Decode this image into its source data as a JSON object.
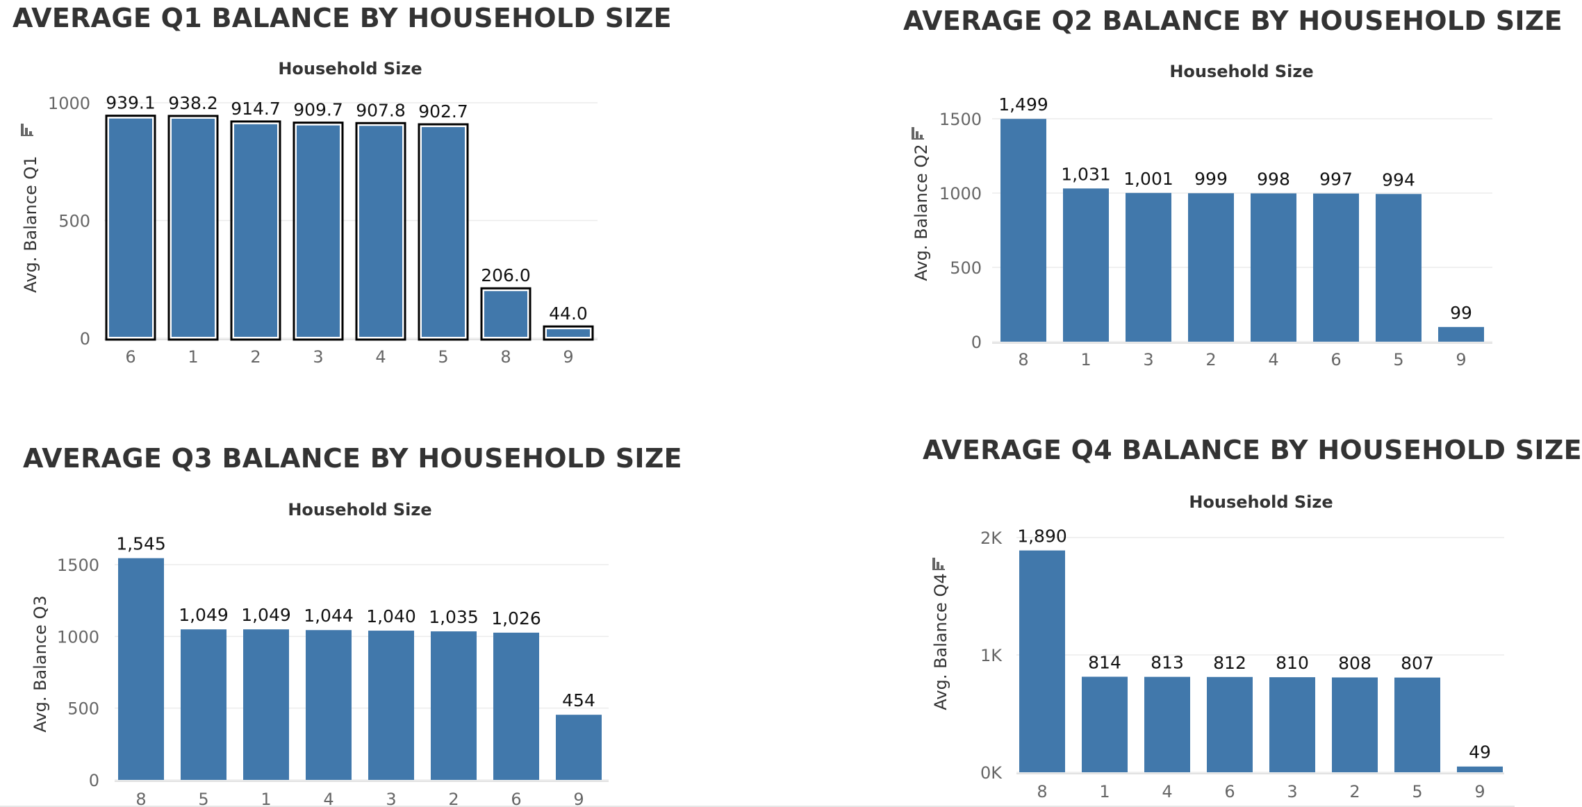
{
  "colors": {
    "bar": "#4178ab",
    "grid": "#ececec",
    "axis": "#d9d9d9",
    "highlight_outline": "#000000"
  },
  "icons": {
    "sort": "sort-icon"
  },
  "chart_data": [
    {
      "type": "bar",
      "title": "AVERAGE Q1 BALANCE BY HOUSEHOLD SIZE",
      "xlabel": "Household Size",
      "ylabel": "Avg. Balance Q1",
      "categories": [
        "6",
        "1",
        "2",
        "3",
        "4",
        "5",
        "8",
        "9"
      ],
      "values": [
        939.1,
        938.2,
        914.7,
        909.7,
        907.8,
        902.7,
        206.0,
        44.0
      ],
      "data_labels": [
        "939.1",
        "938.2",
        "914.7",
        "909.7",
        "907.8",
        "902.7",
        "206.0",
        "44.0"
      ],
      "ylim": [
        0,
        1000
      ],
      "yticks": [
        0,
        500,
        1000
      ],
      "ytick_labels": [
        "0",
        "500",
        "1000"
      ],
      "highlighted": true,
      "sort_icon": true
    },
    {
      "type": "bar",
      "title": "AVERAGE Q2 BALANCE BY HOUSEHOLD SIZE",
      "xlabel": "Household Size",
      "ylabel": "Avg. Balance Q2",
      "categories": [
        "8",
        "1",
        "3",
        "2",
        "4",
        "6",
        "5",
        "9"
      ],
      "values": [
        1499,
        1031,
        1001,
        999,
        998,
        997,
        994,
        99
      ],
      "data_labels": [
        "1,499",
        "1,031",
        "1,001",
        "999",
        "998",
        "997",
        "994",
        "99"
      ],
      "ylim": [
        0,
        1500
      ],
      "yticks": [
        0,
        500,
        1000,
        1500
      ],
      "ytick_labels": [
        "0",
        "500",
        "1000",
        "1500"
      ],
      "highlighted": false,
      "sort_icon": true
    },
    {
      "type": "bar",
      "title": "AVERAGE Q3 BALANCE BY HOUSEHOLD SIZE",
      "xlabel": "Household Size",
      "ylabel": "Avg. Balance Q3",
      "categories": [
        "8",
        "5",
        "1",
        "4",
        "3",
        "2",
        "6",
        "9"
      ],
      "values": [
        1545,
        1049,
        1049,
        1044,
        1040,
        1035,
        1026,
        454
      ],
      "data_labels": [
        "1,545",
        "1,049",
        "1,049",
        "1,044",
        "1,040",
        "1,035",
        "1,026",
        "454"
      ],
      "ylim": [
        0,
        1500
      ],
      "yticks": [
        0,
        500,
        1000,
        1500
      ],
      "ytick_labels": [
        "0",
        "500",
        "1000",
        "1500"
      ],
      "highlighted": false,
      "sort_icon": false
    },
    {
      "type": "bar",
      "title": "AVERAGE Q4 BALANCE BY HOUSEHOLD SIZE",
      "xlabel": "Household Size",
      "ylabel": "Avg. Balance Q4",
      "categories": [
        "8",
        "1",
        "4",
        "6",
        "3",
        "2",
        "5",
        "9"
      ],
      "values": [
        1890,
        814,
        813,
        812,
        810,
        808,
        807,
        49
      ],
      "data_labels": [
        "1,890",
        "814",
        "813",
        "812",
        "810",
        "808",
        "807",
        "49"
      ],
      "ylim": [
        0,
        2000
      ],
      "yticks": [
        0,
        1000,
        2000
      ],
      "ytick_labels": [
        "0K",
        "1K",
        "2K"
      ],
      "highlighted": false,
      "sort_icon": true
    }
  ]
}
